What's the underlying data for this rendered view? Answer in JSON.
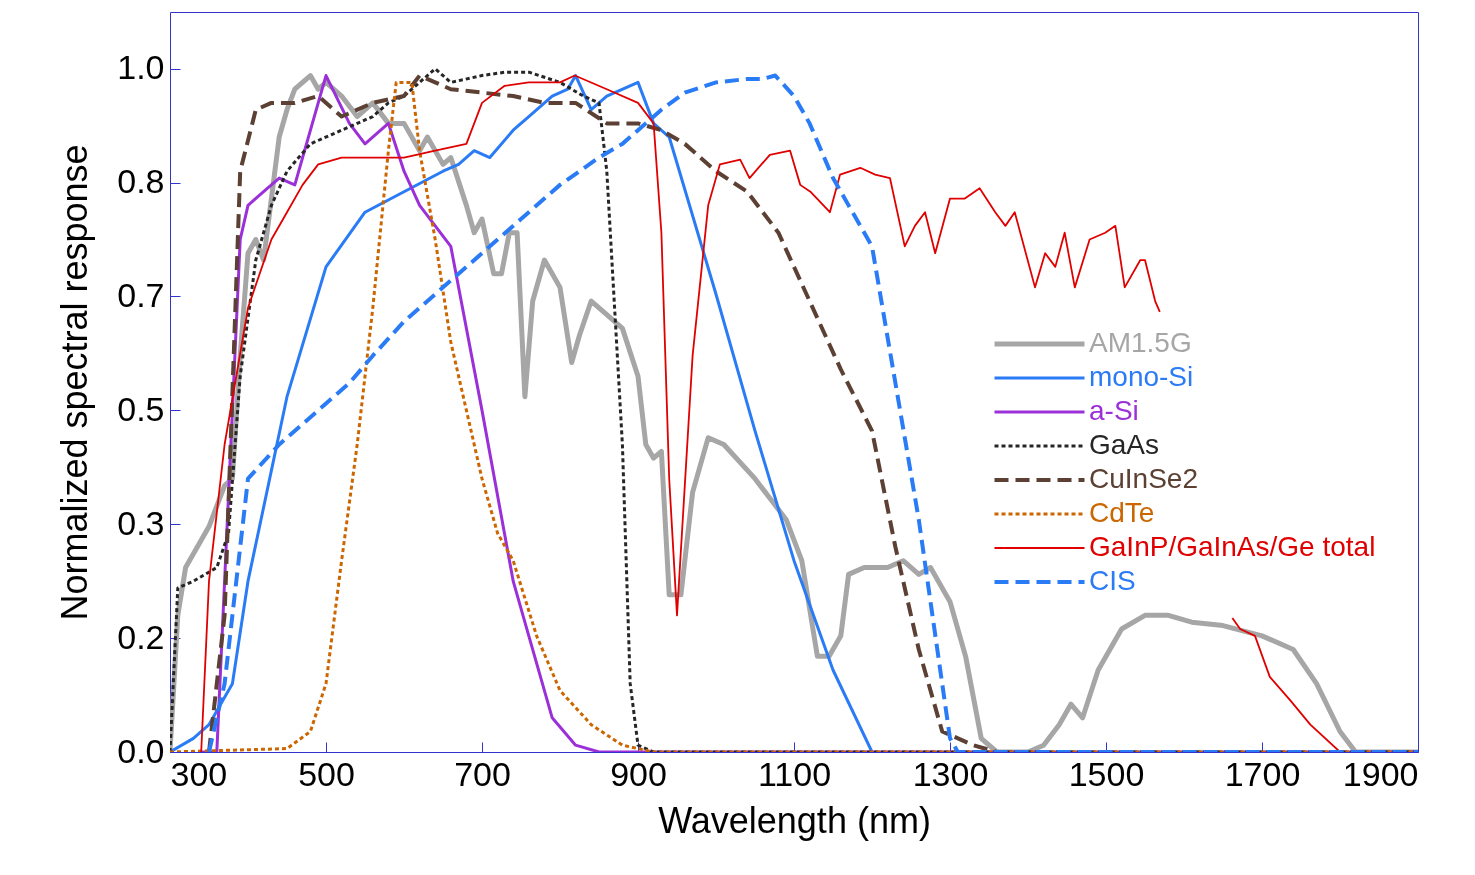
{
  "chart_data": {
    "type": "line",
    "xlabel": "Wavelength (nm)",
    "ylabel": "Normalized spectral response",
    "xlim": [
      300,
      1900
    ],
    "ylim": [
      0,
      1.083
    ],
    "xticks": [
      300,
      500,
      700,
      900,
      1100,
      1300,
      1500,
      1700,
      1900
    ],
    "yticks": [
      {
        "value": 0,
        "label": "0.0"
      },
      {
        "value": 0.1667,
        "label": "0.2"
      },
      {
        "value": 0.3333,
        "label": "0.3"
      },
      0.5,
      {
        "value": 0.6667,
        "label": "0.7"
      },
      {
        "value": 0.8333,
        "label": "0.8"
      },
      {
        "value": 1,
        "label": "1.0"
      }
    ],
    "grid": false,
    "legend": "right",
    "marker": "none",
    "series": [
      {
        "name": "AM1.5G",
        "color": "#a6a6a6",
        "line_style": "solid",
        "x": [
          300,
          310,
          320,
          350,
          370,
          380,
          390,
          400,
          410,
          420,
          440,
          450,
          460,
          480,
          490,
          500,
          520,
          540,
          560,
          580,
          600,
          620,
          630,
          650,
          660,
          680,
          690,
          700,
          715,
          725,
          735,
          745,
          755,
          765,
          780,
          800,
          815,
          825,
          840,
          860,
          880,
          900,
          910,
          920,
          930,
          940,
          955,
          970,
          990,
          1010,
          1050,
          1090,
          1110,
          1130,
          1145,
          1160,
          1170,
          1190,
          1220,
          1240,
          1260,
          1275,
          1300,
          1320,
          1340,
          1360,
          1400,
          1420,
          1440,
          1455,
          1470,
          1490,
          1520,
          1550,
          1580,
          1610,
          1650,
          1700,
          1740,
          1770,
          1800,
          1820,
          1900
        ],
        "values": [
          0,
          0.2,
          0.27,
          0.33,
          0.39,
          0.4,
          0.58,
          0.73,
          0.75,
          0.72,
          0.9,
          0.94,
          0.97,
          0.99,
          0.97,
          0.98,
          0.96,
          0.93,
          0.95,
          0.92,
          0.92,
          0.88,
          0.9,
          0.86,
          0.87,
          0.8,
          0.76,
          0.78,
          0.7,
          0.7,
          0.76,
          0.76,
          0.52,
          0.66,
          0.72,
          0.68,
          0.57,
          0.61,
          0.66,
          0.64,
          0.62,
          0.55,
          0.45,
          0.43,
          0.44,
          0.23,
          0.23,
          0.38,
          0.46,
          0.45,
          0.4,
          0.34,
          0.28,
          0.14,
          0.14,
          0.17,
          0.26,
          0.27,
          0.27,
          0.28,
          0.26,
          0.27,
          0.22,
          0.14,
          0.02,
          0,
          0,
          0.01,
          0.04,
          0.07,
          0.05,
          0.12,
          0.18,
          0.2,
          0.2,
          0.19,
          0.185,
          0.17,
          0.15,
          0.1,
          0.03,
          0,
          0
        ]
      },
      {
        "name": "mono-Si",
        "color": "#2a7bf6",
        "line_style": "solid",
        "x": [
          300,
          330,
          350,
          370,
          380,
          400,
          450,
          500,
          550,
          600,
          650,
          670,
          690,
          710,
          740,
          760,
          790,
          810,
          820,
          840,
          860,
          900,
          920,
          940,
          1000,
          1050,
          1100,
          1150,
          1200
        ],
        "values": [
          0,
          0.02,
          0.04,
          0.08,
          0.1,
          0.25,
          0.52,
          0.71,
          0.79,
          0.82,
          0.85,
          0.86,
          0.88,
          0.87,
          0.91,
          0.93,
          0.96,
          0.97,
          0.99,
          0.94,
          0.96,
          0.98,
          0.92,
          0.9,
          0.67,
          0.47,
          0.28,
          0.12,
          0
        ]
      },
      {
        "name": "a-Si",
        "color": "#9b30d9",
        "line_style": "solid",
        "x": [
          340,
          360,
          390,
          400,
          420,
          440,
          460,
          500,
          530,
          550,
          580,
          600,
          620,
          640,
          660,
          700,
          740,
          760,
          790,
          820,
          850,
          1900
        ],
        "values": [
          0,
          0,
          0.75,
          0.8,
          0.82,
          0.84,
          0.83,
          0.99,
          0.92,
          0.89,
          0.92,
          0.85,
          0.8,
          0.77,
          0.74,
          0.5,
          0.25,
          0.17,
          0.05,
          0.01,
          0,
          0
        ]
      },
      {
        "name": "GaAs",
        "color": "#262626",
        "line_style": "dotted",
        "x": [
          300,
          310,
          330,
          360,
          375,
          390,
          410,
          430,
          450,
          480,
          520,
          560,
          580,
          600,
          620,
          640,
          660,
          700,
          730,
          760,
          800,
          830,
          850,
          860,
          880,
          890,
          900,
          920,
          1900
        ],
        "values": [
          0,
          0.24,
          0.25,
          0.27,
          0.32,
          0.55,
          0.72,
          0.8,
          0.85,
          0.89,
          0.91,
          0.93,
          0.95,
          0.96,
          0.98,
          1.0,
          0.98,
          0.99,
          0.995,
          0.995,
          0.98,
          0.96,
          0.95,
          0.85,
          0.45,
          0.1,
          0.01,
          0,
          0
        ]
      },
      {
        "name": "CuInSe2",
        "color": "#5c4033",
        "line_style": "dashed",
        "x": [
          350,
          370,
          390,
          410,
          430,
          460,
          490,
          520,
          560,
          600,
          620,
          640,
          660,
          700,
          740,
          780,
          820,
          860,
          900,
          930,
          960,
          1000,
          1040,
          1080,
          1120,
          1160,
          1200,
          1230,
          1260,
          1290,
          1330,
          1360,
          1900
        ],
        "values": [
          0,
          0.2,
          0.85,
          0.94,
          0.95,
          0.95,
          0.96,
          0.93,
          0.95,
          0.96,
          0.99,
          0.98,
          0.97,
          0.965,
          0.96,
          0.95,
          0.95,
          0.92,
          0.92,
          0.91,
          0.89,
          0.85,
          0.82,
          0.76,
          0.66,
          0.56,
          0.47,
          0.3,
          0.15,
          0.03,
          0.01,
          0,
          0
        ]
      },
      {
        "name": "CdTe",
        "color": "#cc6600",
        "line_style": "dotted",
        "x": [
          300,
          450,
          480,
          500,
          520,
          540,
          560,
          580,
          590,
          610,
          620,
          640,
          660,
          680,
          700,
          720,
          740,
          770,
          800,
          840,
          880,
          920,
          1900
        ],
        "values": [
          0,
          0.005,
          0.03,
          0.1,
          0.28,
          0.45,
          0.65,
          0.88,
          0.98,
          0.98,
          0.88,
          0.75,
          0.6,
          0.5,
          0.4,
          0.32,
          0.28,
          0.17,
          0.09,
          0.04,
          0.01,
          0,
          0
        ]
      },
      {
        "name": "GaInP/GaInAs/Ge total",
        "color": "#e00000",
        "line_style": "solid",
        "x": [
          340,
          350,
          370,
          400,
          430,
          450,
          470,
          490,
          520,
          560,
          600,
          640,
          680,
          700,
          729,
          760,
          800,
          819,
          860,
          900,
          920,
          930,
          940,
          950,
          970,
          990,
          1005,
          1031,
          1043,
          1069,
          1095,
          1108,
          1121,
          1146,
          1159,
          1185,
          1204,
          1223,
          1242,
          1255,
          1268,
          1281,
          1300,
          1319,
          1338,
          1358,
          1371,
          1383,
          1409,
          1422,
          1435,
          1447,
          1460,
          1479,
          1499,
          1512,
          1524,
          1544,
          1550,
          1563,
          1569,
          1610,
          1662,
          1672,
          1691,
          1710,
          1736,
          1762,
          1800
        ],
        "values": [
          0,
          0.25,
          0.45,
          0.65,
          0.75,
          0.79,
          0.83,
          0.86,
          0.87,
          0.87,
          0.87,
          0.88,
          0.89,
          0.95,
          0.975,
          0.98,
          0.98,
          0.99,
          0.97,
          0.95,
          0.92,
          0.76,
          0.4,
          0.2,
          0.58,
          0.8,
          0.86,
          0.867,
          0.84,
          0.874,
          0.88,
          0.83,
          0.82,
          0.79,
          0.845,
          0.855,
          0.845,
          0.84,
          0.74,
          0.77,
          0.79,
          0.73,
          0.81,
          0.81,
          0.825,
          0.79,
          0.77,
          0.79,
          0.68,
          0.73,
          0.71,
          0.76,
          0.68,
          0.75,
          0.76,
          0.77,
          0.68,
          0.72,
          0.72,
          0.66,
          0.644,
          null,
          0.196,
          0.18,
          0.17,
          0.11,
          0.076,
          0.04,
          0
        ]
      },
      {
        "name": "CIS",
        "color": "#2a7bf6",
        "line_style": "dashed",
        "x": [
          350,
          370,
          380,
          400,
          440,
          470,
          500,
          530,
          560,
          600,
          650,
          700,
          750,
          800,
          850,
          880,
          900,
          930,
          960,
          1000,
          1040,
          1060,
          1076,
          1100,
          1120,
          1150,
          1170,
          1200,
          1230,
          1260,
          1290,
          1300,
          1310,
          1900
        ],
        "values": [
          0,
          0.1,
          0.2,
          0.4,
          0.45,
          0.48,
          0.51,
          0.54,
          0.58,
          0.63,
          0.68,
          0.73,
          0.78,
          0.83,
          0.87,
          0.89,
          0.91,
          0.94,
          0.965,
          0.98,
          0.985,
          0.985,
          0.99,
          0.96,
          0.92,
          0.84,
          0.8,
          0.74,
          0.54,
          0.34,
          0.1,
          0.02,
          0,
          0
        ]
      }
    ]
  }
}
